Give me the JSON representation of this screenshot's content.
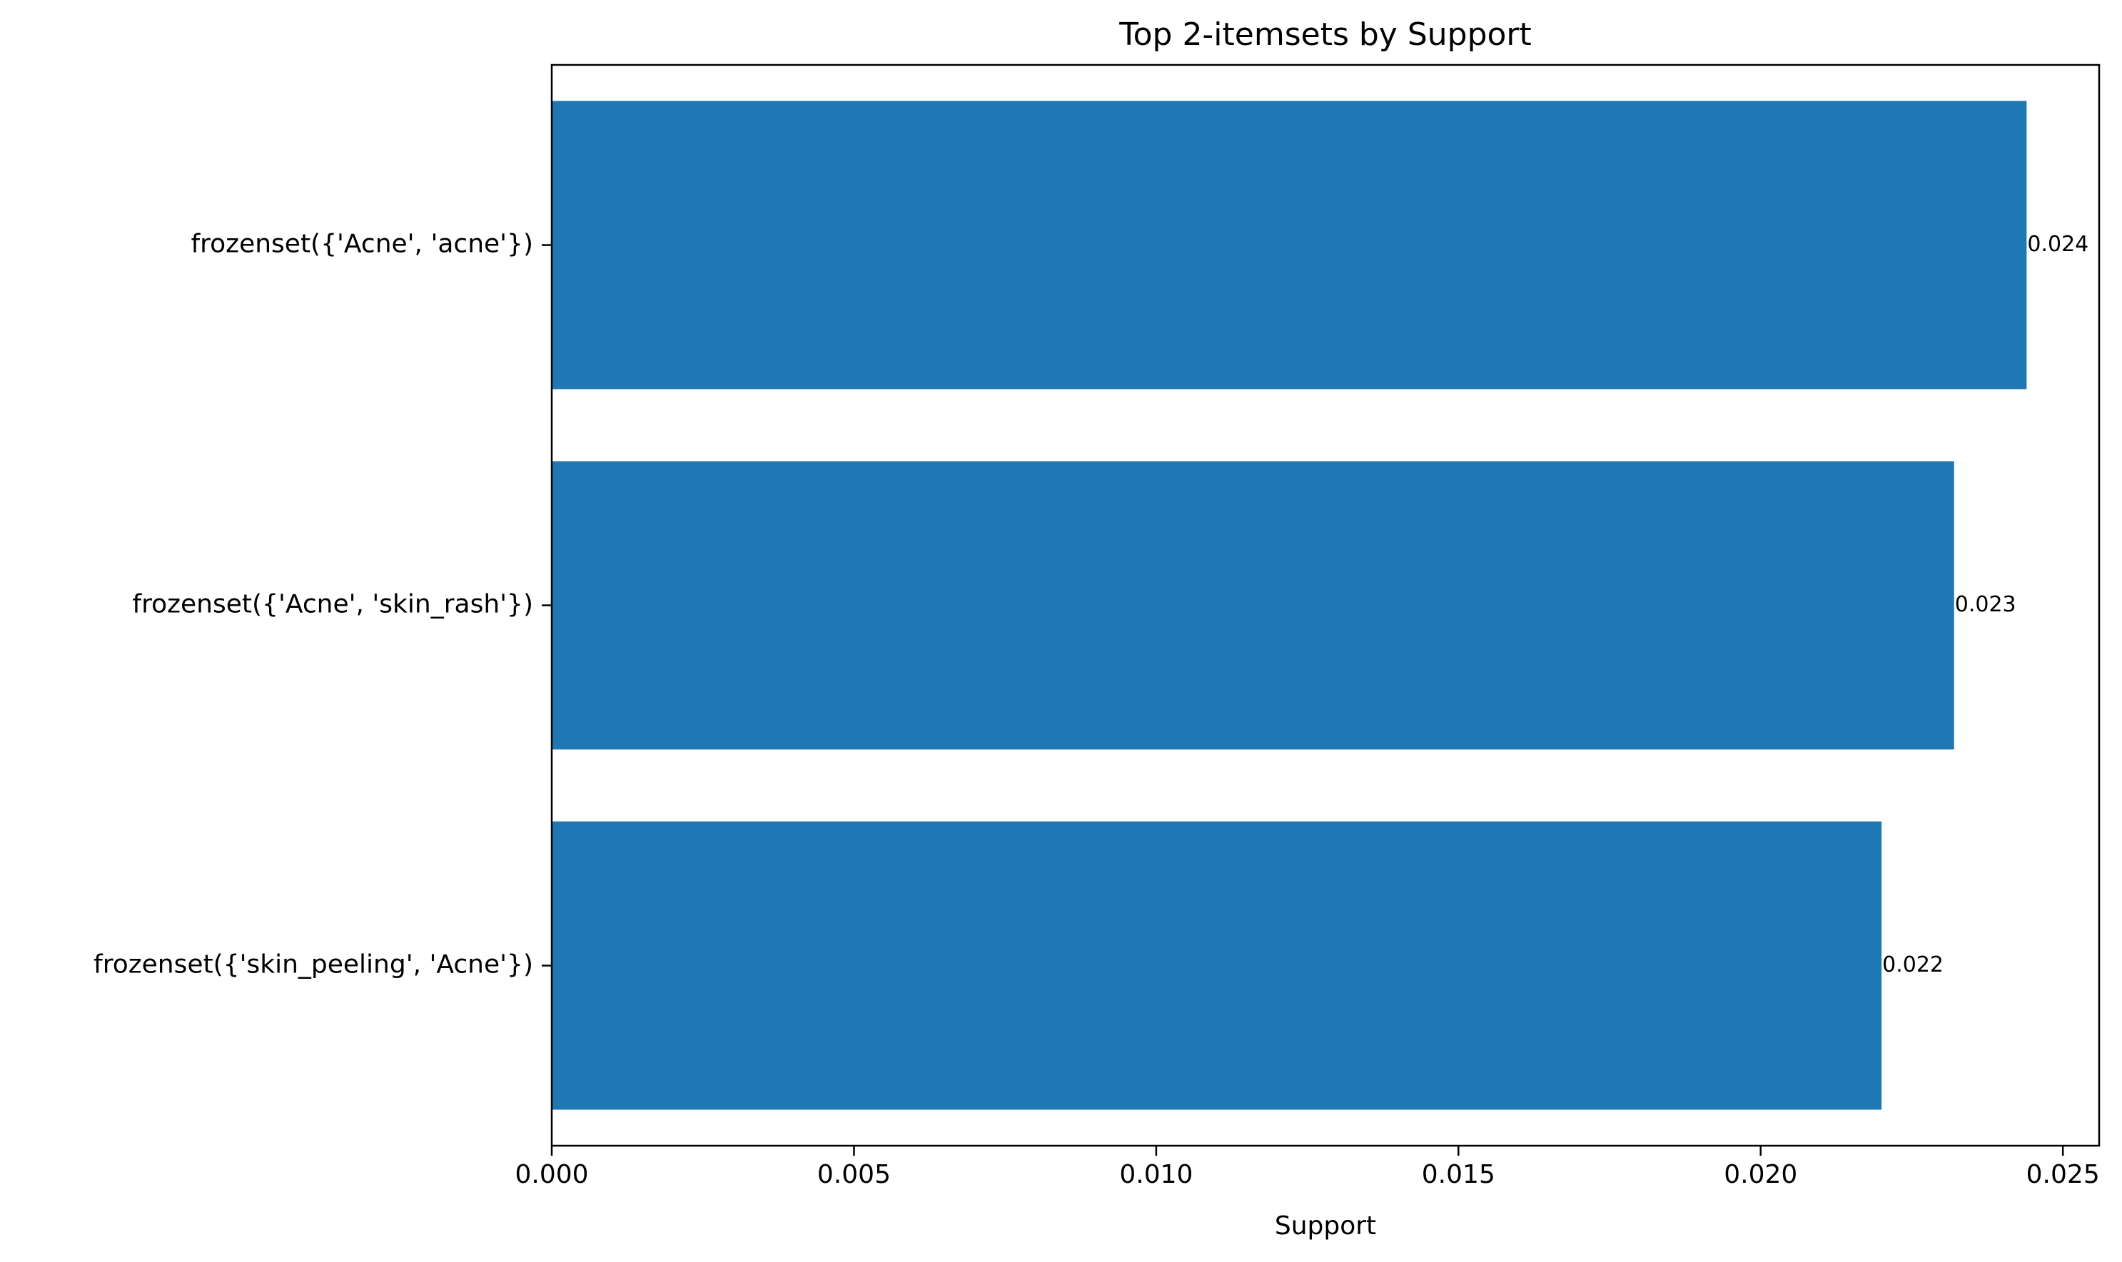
{
  "chart_data": {
    "type": "bar",
    "orientation": "horizontal",
    "title": "Top 2-itemsets by Support",
    "xlabel": "Support",
    "ylabel": "",
    "categories": [
      "frozenset({'Acne', 'acne'})",
      "frozenset({'Acne', 'skin_rash'})",
      "frozenset({'skin_peeling', 'Acne'})"
    ],
    "values": [
      0.0244,
      0.0232,
      0.022
    ],
    "value_labels": [
      "0.024",
      "0.023",
      "0.022"
    ],
    "xlim": [
      0,
      0.0256
    ],
    "xticks": [
      0,
      0.005,
      0.01,
      0.015,
      0.02,
      0.025
    ],
    "xtick_labels": [
      "0.000",
      "0.005",
      "0.010",
      "0.015",
      "0.020",
      "0.025"
    ],
    "grid": false,
    "bar_color": "#1f77b4"
  }
}
